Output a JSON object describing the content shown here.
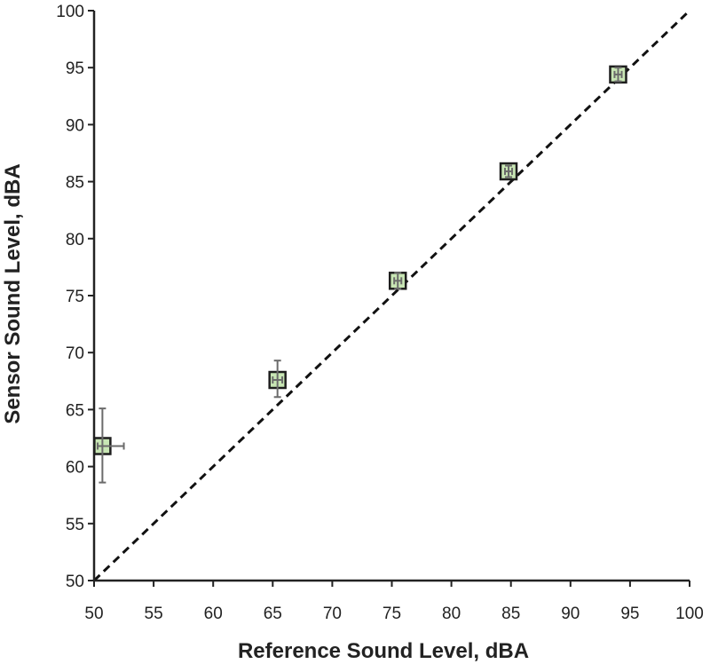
{
  "chart_data": {
    "type": "scatter",
    "xlabel": "Reference Sound Level, dBA",
    "ylabel": "Sensor Sound Level, dBA",
    "xlim": [
      50,
      100
    ],
    "ylim": [
      50,
      100
    ],
    "x_ticks": [
      50,
      55,
      60,
      65,
      70,
      75,
      80,
      85,
      90,
      95,
      100
    ],
    "y_ticks": [
      50,
      55,
      60,
      65,
      70,
      75,
      80,
      85,
      90,
      95,
      100
    ],
    "grid": false,
    "legend": "none",
    "points": [
      {
        "x": 50.7,
        "y": 61.8,
        "x_err_low": 0.4,
        "x_err_high": 1.8,
        "y_err_low": 3.2,
        "y_err_high": 3.3
      },
      {
        "x": 65.4,
        "y": 67.6,
        "x_err_low": 0.4,
        "x_err_high": 0.4,
        "y_err_low": 1.5,
        "y_err_high": 1.7
      },
      {
        "x": 75.5,
        "y": 76.3,
        "x_err_low": 0.3,
        "x_err_high": 0.3,
        "y_err_low": 0.7,
        "y_err_high": 0.7
      },
      {
        "x": 84.8,
        "y": 85.9,
        "x_err_low": 0.3,
        "x_err_high": 0.3,
        "y_err_low": 0.5,
        "y_err_high": 0.5
      },
      {
        "x": 94.0,
        "y": 94.4,
        "x_err_low": 0.3,
        "x_err_high": 0.3,
        "y_err_low": 0.6,
        "y_err_high": 0.6
      }
    ],
    "reference_line": {
      "style": "dashed",
      "from": [
        50,
        50
      ],
      "to": [
        100,
        100
      ]
    },
    "colors": {
      "marker_fill": "#c8e6b4",
      "marker_edge": "#1e1e1e",
      "error_bar": "#6b6b6b",
      "axis": "#222222",
      "reference_line": "#111111"
    }
  }
}
